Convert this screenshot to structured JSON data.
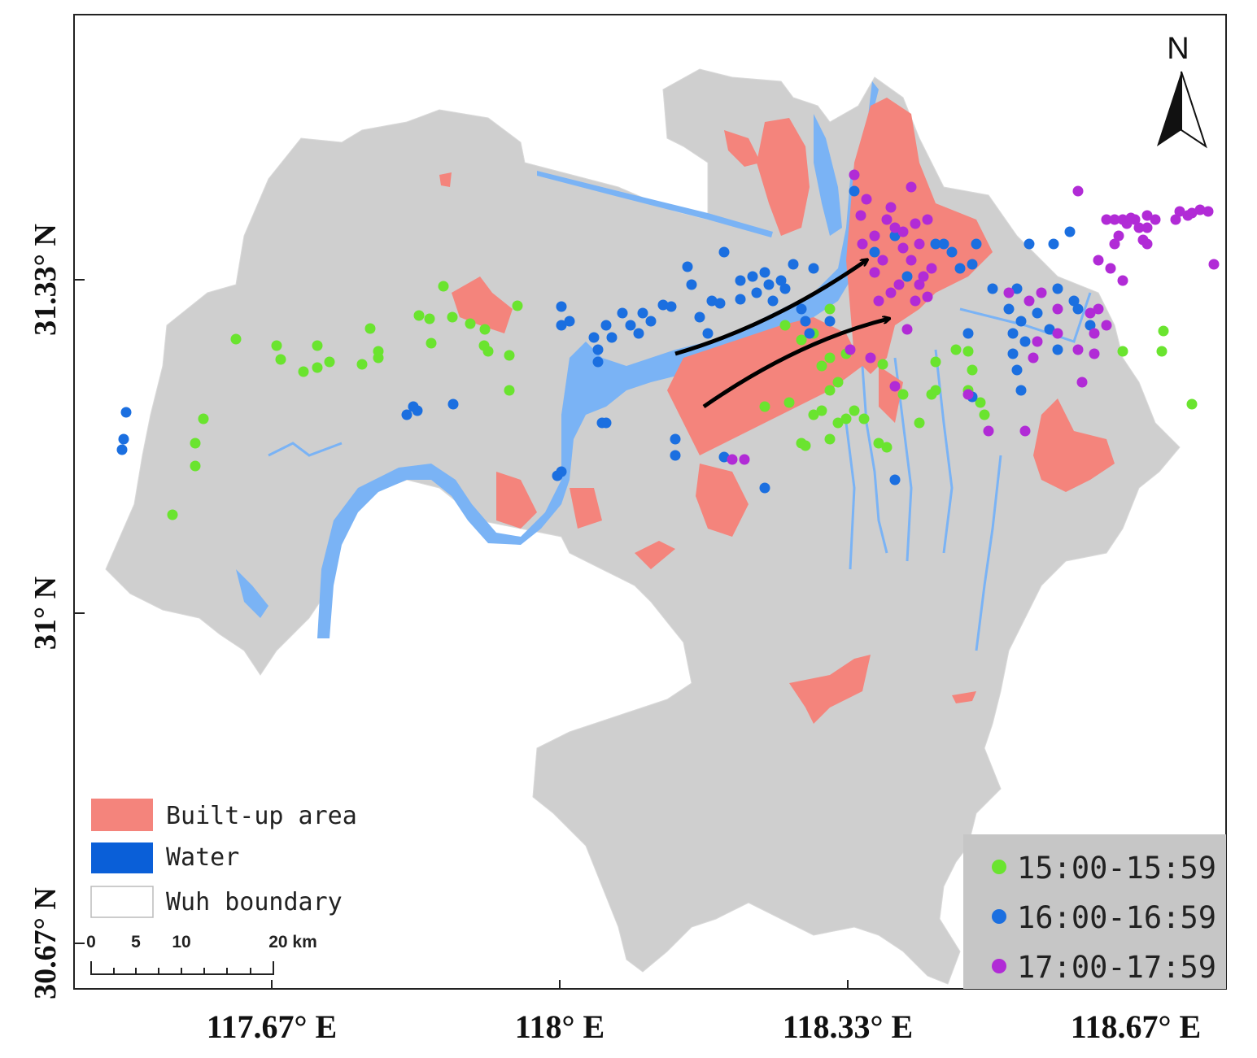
{
  "axes": {
    "x_labels": [
      "117.67° E",
      "118° E",
      "118.33° E",
      "118.67° E"
    ],
    "y_labels": [
      "31.33° N",
      "31° N",
      "30.67° N"
    ]
  },
  "north_arrow": {
    "label": "N",
    "icon": "north-arrow-icon"
  },
  "legend": {
    "items": [
      {
        "label": "Built-up area",
        "color": "#f4847c"
      },
      {
        "label": "Water",
        "color": "#0a5fd8"
      },
      {
        "label": "Wuh boundary",
        "color": "#ffffff"
      }
    ]
  },
  "time_legend": {
    "items": [
      {
        "label": "15:00-15:59",
        "color": "#6ae42f"
      },
      {
        "label": "16:00-16:59",
        "color": "#1b6fe0"
      },
      {
        "label": "17:00-17:59",
        "color": "#b12bd6"
      }
    ]
  },
  "scale_bar": {
    "ticks": [
      "0",
      "5",
      "10",
      "20 km"
    ]
  },
  "colors": {
    "land": "#cfcfcf",
    "water": "#7ab3f5",
    "built_up": "#f4847c",
    "arrow": "#000000"
  }
}
